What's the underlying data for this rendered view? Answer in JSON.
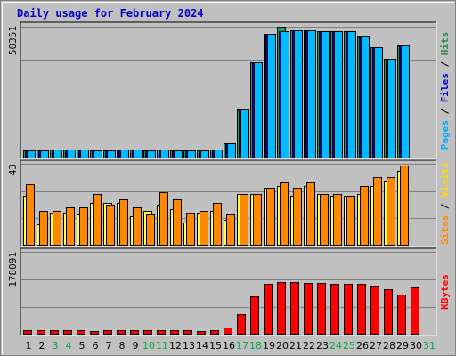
{
  "chart_data": {
    "type": "bar",
    "title": "Daily usage for February 2024",
    "categories": [
      "1",
      "2",
      "3",
      "4",
      "5",
      "6",
      "7",
      "8",
      "9",
      "10",
      "11",
      "12",
      "13",
      "14",
      "15",
      "16",
      "17",
      "18",
      "19",
      "20",
      "21",
      "22",
      "23",
      "24",
      "25",
      "26",
      "27",
      "28",
      "29",
      "30",
      "31"
    ],
    "weekend_categories": [
      "3",
      "4",
      "10",
      "11",
      "17",
      "18",
      "24",
      "25",
      "31"
    ],
    "panels": [
      {
        "name": "pages-files-hits",
        "max_label": "50351",
        "ymax": 50351,
        "ylabel_parts": [
          {
            "text": "Pages",
            "color": "#00aaff"
          },
          {
            "text": " / ",
            "color": "#000000"
          },
          {
            "text": "Files",
            "color": "#0000cc"
          },
          {
            "text": " / ",
            "color": "#000000"
          },
          {
            "text": "Hits",
            "color": "#338855"
          }
        ],
        "series": [
          {
            "name": "Hits",
            "color": "#00aa66",
            "values": [
              2700,
              2700,
              3100,
              3100,
              3100,
              2700,
              2700,
              3100,
              3100,
              2700,
              3100,
              2700,
              2700,
              2700,
              3100,
              5400,
              18400,
              36800,
              47500,
              50351,
              49000,
              49000,
              48600,
              48600,
              48600,
              46500,
              42500,
              38100,
              43300,
              0,
              0
            ]
          },
          {
            "name": "Files",
            "color": "#0000cc",
            "values": [
              2700,
              2700,
              3100,
              3100,
              3100,
              2700,
              2700,
              3100,
              3100,
              2700,
              3100,
              2700,
              2700,
              2700,
              3100,
              5400,
              18400,
              36800,
              47500,
              48600,
              49000,
              49000,
              48600,
              48600,
              48600,
              46500,
              42500,
              38100,
              43300,
              0,
              0
            ]
          },
          {
            "name": "Pages",
            "color": "#00bbff",
            "values": [
              2700,
              2700,
              3100,
              3100,
              3100,
              2700,
              2700,
              3100,
              3100,
              2700,
              3100,
              2700,
              2700,
              2700,
              3100,
              5400,
              18400,
              36800,
              47500,
              48600,
              49000,
              49000,
              48600,
              48600,
              48600,
              46500,
              42500,
              38100,
              43300,
              0,
              0
            ]
          }
        ]
      },
      {
        "name": "sites-visits",
        "max_label": "43",
        "ymax": 43,
        "ylabel_parts": [
          {
            "text": "Sites",
            "color": "#ff8800"
          },
          {
            "text": " / ",
            "color": "#000000"
          },
          {
            "text": "Visits",
            "color": "#ffdd00"
          }
        ],
        "series": [
          {
            "name": "Visits",
            "color": "#ffff44",
            "values": [
              26,
              11,
              17,
              17,
              16,
              22,
              22,
              22,
              15,
              18,
              21,
              19,
              12,
              17,
              18,
              13,
              27,
              27,
              30,
              31,
              26,
              31,
              27,
              26,
              26,
              27,
              31,
              34,
              39,
              0,
              0
            ]
          },
          {
            "name": "Sites",
            "color": "#ff8800",
            "values": [
              32,
              18,
              18,
              20,
              20,
              27,
              21,
              24,
              20,
              16,
              28,
              24,
              17,
              18,
              22,
              16,
              27,
              27,
              30,
              33,
              30,
              33,
              27,
              27,
              26,
              31,
              36,
              36,
              42,
              0,
              0
            ]
          }
        ]
      },
      {
        "name": "kbytes",
        "max_label": "178091",
        "ymax": 178091,
        "ylabel_parts": [
          {
            "text": "KBytes",
            "color": "#ff0000"
          }
        ],
        "series": [
          {
            "name": "KBytes",
            "color": "#ff0000",
            "values": [
              8000,
              7000,
              7200,
              7200,
              7200,
              6000,
              7500,
              7500,
              7500,
              7200,
              7500,
              7500,
              7500,
              6500,
              7500,
              14000,
              42000,
              82000,
              108000,
              112000,
              112000,
              110000,
              110000,
              108000,
              108000,
              108000,
              104000,
              96000,
              85000,
              100000,
              0
            ]
          }
        ]
      }
    ]
  }
}
